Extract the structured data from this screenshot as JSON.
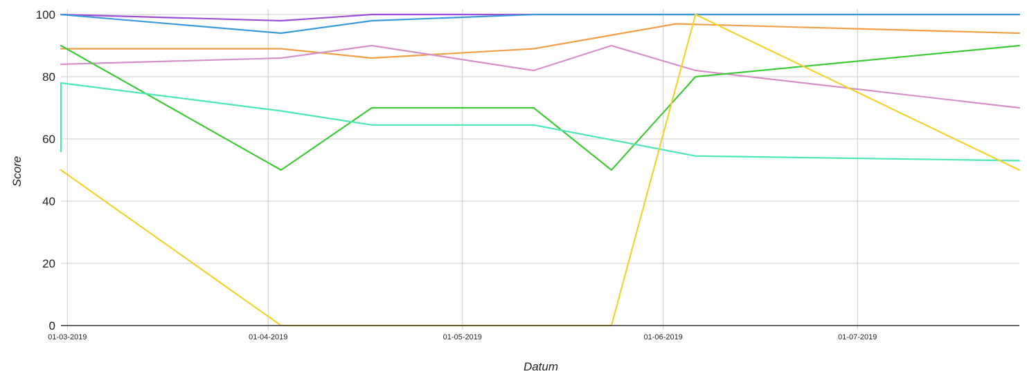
{
  "chart_data": {
    "type": "line",
    "xlabel": "Datum",
    "ylabel": "Score",
    "ylim": [
      0,
      100
    ],
    "yticks": [
      "0",
      "20",
      "40",
      "60",
      "80",
      "100"
    ],
    "xlim": [
      "2019-02-28",
      "2019-07-26"
    ],
    "xticks": [
      {
        "date": "2019-03-01",
        "label": "01-03-2019"
      },
      {
        "date": "2019-04-01",
        "label": "01-04-2019"
      },
      {
        "date": "2019-05-01",
        "label": "01-05-2019"
      },
      {
        "date": "2019-06-01",
        "label": "01-06-2019"
      },
      {
        "date": "2019-07-01",
        "label": "01-07-2019"
      }
    ],
    "grid": true,
    "legend": "none",
    "series": [
      {
        "color": "#9c4fd6",
        "points": [
          [
            "2019-02-28",
            100
          ],
          [
            "2019-04-03",
            98
          ],
          [
            "2019-04-17",
            100
          ],
          [
            "2019-07-26",
            100
          ]
        ]
      },
      {
        "color": "#3a9ad9",
        "points": [
          [
            "2019-02-28",
            100
          ],
          [
            "2019-04-03",
            94
          ],
          [
            "2019-04-17",
            98
          ],
          [
            "2019-05-12",
            100
          ],
          [
            "2019-07-26",
            100
          ]
        ]
      },
      {
        "color": "#f0a047",
        "points": [
          [
            "2019-02-28",
            89
          ],
          [
            "2019-04-03",
            89
          ],
          [
            "2019-04-17",
            86
          ],
          [
            "2019-05-12",
            89
          ],
          [
            "2019-06-03",
            97
          ],
          [
            "2019-07-26",
            94
          ]
        ]
      },
      {
        "color": "#d590c5",
        "points": [
          [
            "2019-02-28",
            84
          ],
          [
            "2019-04-03",
            86
          ],
          [
            "2019-04-17",
            90
          ],
          [
            "2019-05-12",
            82
          ],
          [
            "2019-05-24",
            90
          ],
          [
            "2019-06-06",
            82
          ],
          [
            "2019-07-26",
            70
          ]
        ]
      },
      {
        "color": "#3ec938",
        "points": [
          [
            "2019-02-28",
            90
          ],
          [
            "2019-04-03",
            50
          ],
          [
            "2019-04-17",
            70
          ],
          [
            "2019-05-12",
            70
          ],
          [
            "2019-05-24",
            50
          ],
          [
            "2019-06-06",
            80
          ],
          [
            "2019-07-26",
            90
          ]
        ]
      },
      {
        "color": "#4de6b4",
        "points": [
          [
            "2019-02-28",
            56
          ],
          [
            "2019-02-28",
            78
          ],
          [
            "2019-04-03",
            69
          ],
          [
            "2019-04-17",
            64.5
          ],
          [
            "2019-05-12",
            64.5
          ],
          [
            "2019-06-06",
            54.5
          ],
          [
            "2019-07-26",
            53
          ]
        ]
      },
      {
        "color": "#f2d22e",
        "points": [
          [
            "2019-02-28",
            50
          ],
          [
            "2019-04-03",
            0
          ],
          [
            "2019-05-24",
            0
          ],
          [
            "2019-06-06",
            100
          ],
          [
            "2019-07-26",
            50
          ]
        ]
      }
    ]
  }
}
